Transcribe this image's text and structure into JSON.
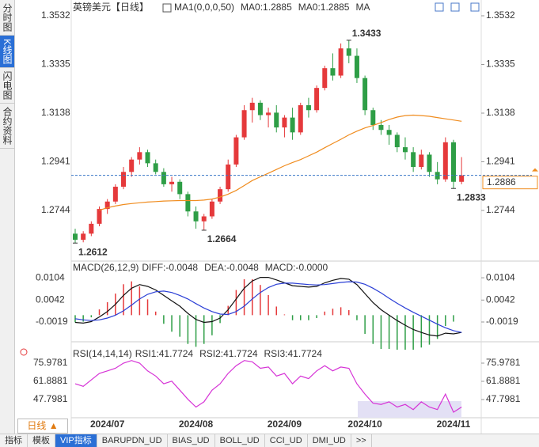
{
  "sidebar_tabs": [
    "分时图",
    "K线图",
    "闪电图",
    "合约资料"
  ],
  "toolbar": {
    "period_button": "日线 ▲",
    "tabs": [
      "指标",
      "模板",
      "VIP指标",
      "BARUPDN_UD",
      "BIAS_UD",
      "BOLL_UD",
      "CCI_UD",
      "DMI_UD",
      ">>"
    ],
    "active_tab": 2
  },
  "chart_data": [
    {
      "type": "candlestick",
      "title": "英镑美元",
      "period": "【日线】",
      "legend": [
        "MA1(0,0,0,50)",
        "MA0:1.2885",
        "MA0:1.2885",
        "MA"
      ],
      "legend_colors": [
        "#333333",
        "#333333",
        "#2b3fd6",
        "#d633d6"
      ],
      "up_color": "#e5393b",
      "down_color": "#2e9e46",
      "ma_color": "#f08c1e",
      "categories": [
        null,
        null,
        null,
        null,
        "2024/07",
        null,
        null,
        null,
        null,
        null,
        null,
        null,
        null,
        null,
        null,
        "2024/08",
        null,
        null,
        null,
        null,
        null,
        null,
        null,
        null,
        null,
        null,
        "2024/09",
        null,
        null,
        null,
        null,
        null,
        null,
        null,
        null,
        null,
        "2024/10",
        null,
        null,
        null,
        null,
        null,
        null,
        null,
        null,
        null,
        null,
        "2024/11",
        null
      ],
      "open": [
        1.265,
        1.2625,
        1.265,
        1.269,
        1.275,
        1.278,
        1.284,
        1.29,
        1.295,
        1.298,
        1.2935,
        1.29,
        1.285,
        1.286,
        1.281,
        1.274,
        1.27,
        1.272,
        1.278,
        1.283,
        1.293,
        1.304,
        1.315,
        1.318,
        1.313,
        1.314,
        1.308,
        1.312,
        1.306,
        1.317,
        1.315,
        1.324,
        1.332,
        1.329,
        1.34,
        1.337,
        1.328,
        1.315,
        1.309,
        1.307,
        1.305,
        1.3,
        1.298,
        1.292,
        1.297,
        1.29,
        1.287,
        1.302,
        1.286
      ],
      "high": [
        1.267,
        1.266,
        1.27,
        1.276,
        1.279,
        1.285,
        1.292,
        1.296,
        1.3,
        1.299,
        1.295,
        1.2915,
        1.288,
        1.287,
        1.282,
        1.276,
        1.273,
        1.279,
        1.284,
        1.295,
        1.305,
        1.317,
        1.32,
        1.319,
        1.316,
        1.317,
        1.313,
        1.316,
        1.318,
        1.32,
        1.325,
        1.333,
        1.338,
        1.342,
        1.3433,
        1.34,
        1.329,
        1.316,
        1.311,
        1.309,
        1.306,
        1.304,
        1.3,
        1.299,
        1.298,
        1.294,
        1.304,
        1.303,
        1.296
      ],
      "low": [
        1.2612,
        1.2615,
        1.264,
        1.268,
        1.273,
        1.277,
        1.283,
        1.288,
        1.293,
        1.292,
        1.289,
        1.284,
        1.282,
        1.279,
        1.272,
        1.267,
        1.2664,
        1.271,
        1.277,
        1.282,
        1.292,
        1.303,
        1.31,
        1.311,
        1.308,
        1.306,
        1.304,
        1.303,
        1.305,
        1.312,
        1.314,
        1.323,
        1.327,
        1.328,
        1.334,
        1.326,
        1.313,
        1.307,
        1.305,
        1.301,
        1.298,
        1.295,
        1.29,
        1.291,
        1.288,
        1.285,
        1.286,
        1.2833,
        1.285
      ],
      "close": [
        1.2625,
        1.265,
        1.269,
        1.275,
        1.278,
        1.284,
        1.29,
        1.295,
        1.298,
        1.2935,
        1.29,
        1.285,
        1.286,
        1.281,
        1.274,
        1.27,
        1.272,
        1.278,
        1.283,
        1.293,
        1.304,
        1.315,
        1.318,
        1.313,
        1.314,
        1.308,
        1.312,
        1.306,
        1.317,
        1.315,
        1.324,
        1.332,
        1.329,
        1.34,
        1.337,
        1.328,
        1.315,
        1.309,
        1.307,
        1.305,
        1.3,
        1.298,
        1.292,
        1.297,
        1.29,
        1.287,
        1.302,
        1.286,
        1.2886
      ],
      "ma": [
        null,
        null,
        null,
        1.2745,
        1.2755,
        1.2762,
        1.2768,
        1.2772,
        1.2775,
        1.2778,
        1.278,
        1.2782,
        1.2783,
        1.2784,
        1.2784,
        1.2784,
        1.2786,
        1.279,
        1.2798,
        1.281,
        1.2825,
        1.2845,
        1.2865,
        1.288,
        1.2895,
        1.291,
        1.2925,
        1.2938,
        1.295,
        1.2965,
        1.298,
        1.2998,
        1.3015,
        1.3032,
        1.305,
        1.3065,
        1.3078,
        1.3088,
        1.31,
        1.3112,
        1.3122,
        1.3128,
        1.313,
        1.3128,
        1.3125,
        1.312,
        1.3115,
        1.311,
        1.3105
      ],
      "last_price": 1.2886,
      "annotations": [
        {
          "value": 1.3433,
          "at": "high",
          "color": "#e5393b"
        },
        {
          "value": 1.2612,
          "at": "low",
          "color": "#4c9a3c"
        },
        {
          "value": 1.2664,
          "at": "low",
          "color": "#4c9a3c"
        },
        {
          "value": 1.2833,
          "at": "low",
          "color": "#4c9a3c"
        }
      ],
      "ylim": [
        1.2539,
        1.3596
      ],
      "yticks": [
        1.3532,
        1.3335,
        1.3138,
        1.2941,
        1.2744
      ]
    },
    {
      "type": "macd",
      "label": "MACD(26,12,9)",
      "legend": [
        "DIFF:-0.0048",
        "DEA:-0.0048",
        "MACD:-0.0000"
      ],
      "legend_colors": [
        "#333333",
        "#2b3fd6",
        "#d633d6"
      ],
      "diff_color": "#111111",
      "dea_color": "#2b3fd6",
      "up_color": "#e5393b",
      "down_color": "#2e9e46",
      "diff": [
        -0.002,
        -0.0022,
        -0.0018,
        -0.0005,
        0.001,
        0.003,
        0.0055,
        0.0075,
        0.0085,
        0.008,
        0.007,
        0.0055,
        0.004,
        0.0025,
        0.0005,
        -0.0012,
        -0.002,
        -0.0018,
        -0.0008,
        0.0015,
        0.0045,
        0.0075,
        0.0095,
        0.0105,
        0.0105,
        0.0098,
        0.009,
        0.0082,
        0.008,
        0.0078,
        0.008,
        0.009,
        0.0097,
        0.0102,
        0.01,
        0.0085,
        0.006,
        0.0035,
        0.0015,
        0.0,
        -0.0015,
        -0.0028,
        -0.004,
        -0.0048,
        -0.0055,
        -0.0058,
        -0.005,
        -0.0052,
        -0.0048
      ],
      "dea": [
        -0.001,
        -0.0013,
        -0.0015,
        -0.0013,
        -0.0008,
        0.0,
        0.0012,
        0.0028,
        0.0045,
        0.0058,
        0.0065,
        0.0067,
        0.0063,
        0.0055,
        0.0045,
        0.0032,
        0.002,
        0.001,
        0.0003,
        0.0002,
        0.001,
        0.0025,
        0.0045,
        0.0063,
        0.0077,
        0.0086,
        0.0089,
        0.0089,
        0.0087,
        0.0085,
        0.0084,
        0.0085,
        0.0088,
        0.0091,
        0.0093,
        0.0092,
        0.0086,
        0.0075,
        0.0062,
        0.0047,
        0.0033,
        0.002,
        0.0008,
        -0.0003,
        -0.0014,
        -0.0025,
        -0.0035,
        -0.0043,
        -0.0048
      ],
      "hist": [
        -0.002,
        -0.0018,
        -0.0006,
        0.0016,
        0.0036,
        0.006,
        0.0086,
        0.0094,
        0.008,
        0.0044,
        0.001,
        -0.0024,
        -0.0046,
        -0.006,
        -0.008,
        -0.0088,
        -0.008,
        -0.0056,
        -0.0022,
        0.0026,
        0.007,
        0.01,
        0.01,
        0.0084,
        0.0056,
        0.0024,
        0.0002,
        -0.0014,
        -0.0014,
        -0.0014,
        -0.0008,
        0.001,
        0.0018,
        0.0022,
        0.0014,
        -0.0014,
        -0.0052,
        -0.008,
        -0.0094,
        -0.0094,
        -0.0096,
        -0.0096,
        -0.0096,
        -0.009,
        -0.0082,
        -0.0066,
        -0.003,
        -0.0018,
        0.0
      ],
      "ylim": [
        -0.0074,
        0.0146
      ],
      "yticks": [
        0.0104,
        0.0042,
        -0.0019
      ]
    },
    {
      "type": "rsi",
      "label": "RSI(14,14,14)",
      "legend": [
        "RSI1:41.7724",
        "RSI2:41.7724",
        "RSI3:41.7724"
      ],
      "legend_colors": [
        "#333333",
        "#2b3fd6",
        "#d633d6"
      ],
      "color": "#d633d6",
      "values": [
        60,
        58,
        63,
        68,
        70,
        72,
        76,
        78,
        76,
        70,
        66,
        60,
        62,
        55,
        48,
        42,
        46,
        55,
        60,
        68,
        74,
        78,
        77,
        72,
        73,
        66,
        68,
        60,
        66,
        64,
        70,
        74,
        70,
        73,
        72,
        60,
        52,
        45,
        44,
        46,
        42,
        44,
        40,
        46,
        42,
        40,
        52,
        38,
        42
      ],
      "ylim": [
        33.71,
        90.07
      ],
      "yticks": [
        75.9781,
        61.8881,
        47.7981
      ]
    }
  ]
}
